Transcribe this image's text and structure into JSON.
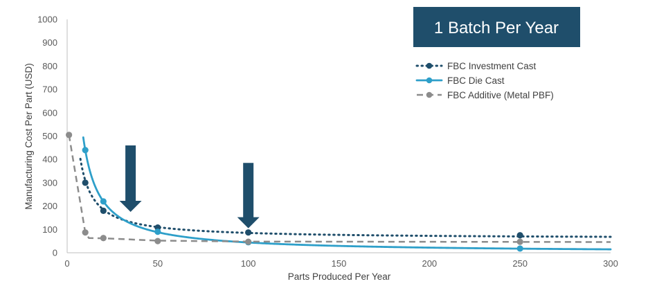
{
  "chart_data": {
    "type": "line",
    "title": "1 Batch Per Year",
    "xlabel": "Parts Produced Per Year",
    "ylabel": "Manufacturing Cost Per Part (USD)",
    "xlim": [
      0,
      300
    ],
    "ylim": [
      0,
      1000
    ],
    "x_ticks": [
      "0",
      "50",
      "100",
      "150",
      "200",
      "250",
      "300"
    ],
    "y_ticks": [
      "0",
      "100",
      "200",
      "300",
      "400",
      "500",
      "600",
      "700",
      "800",
      "900",
      "1000"
    ],
    "grid": false,
    "legend_position": "top-right",
    "series": [
      {
        "name": "FBC Investment Cast",
        "color": "#1f4e6b",
        "style": "dotted",
        "markers": [
          {
            "x": 10,
            "y": 300
          },
          {
            "x": 20,
            "y": 180
          },
          {
            "x": 50,
            "y": 108
          },
          {
            "x": 100,
            "y": 87
          },
          {
            "x": 250,
            "y": 75
          }
        ],
        "curve": {
          "a": 60,
          "b": 2500,
          "x_start": 7.3,
          "x_end": 300
        }
      },
      {
        "name": "FBC Die Cast",
        "color": "#2e9fc9",
        "style": "solid",
        "markers": [
          {
            "x": 10,
            "y": 440
          },
          {
            "x": 20,
            "y": 220
          },
          {
            "x": 50,
            "y": 90
          },
          {
            "x": 100,
            "y": 45
          },
          {
            "x": 250,
            "y": 18
          }
        ],
        "curve": {
          "a": 0,
          "b": 4400,
          "x_start": 8.9,
          "x_end": 300
        }
      },
      {
        "name": "FBC Additive (Metal PBF)",
        "color": "#8c8c8c",
        "style": "dashed",
        "markers": [
          {
            "x": 1,
            "y": 505
          },
          {
            "x": 10,
            "y": 87
          },
          {
            "x": 20,
            "y": 63
          },
          {
            "x": 50,
            "y": 50
          },
          {
            "x": 100,
            "y": 47
          },
          {
            "x": 250,
            "y": 47
          }
        ],
        "polyline": [
          {
            "x": 1,
            "y": 505
          },
          {
            "x": 10,
            "y": 87
          },
          {
            "x": 12,
            "y": 63
          },
          {
            "x": 20,
            "y": 62
          },
          {
            "x": 50,
            "y": 52
          },
          {
            "x": 100,
            "y": 48
          },
          {
            "x": 300,
            "y": 46
          }
        ]
      }
    ],
    "annotations": [
      {
        "type": "down-arrow",
        "x": 35,
        "y_top": 460,
        "y_bottom": 175,
        "color": "#1f4e6b"
      },
      {
        "type": "down-arrow",
        "x": 100,
        "y_top": 385,
        "y_bottom": 105,
        "color": "#1f4e6b"
      }
    ]
  },
  "colors": {
    "badge_fill": "#1f4e6b",
    "axis": "#bfbfbf"
  }
}
